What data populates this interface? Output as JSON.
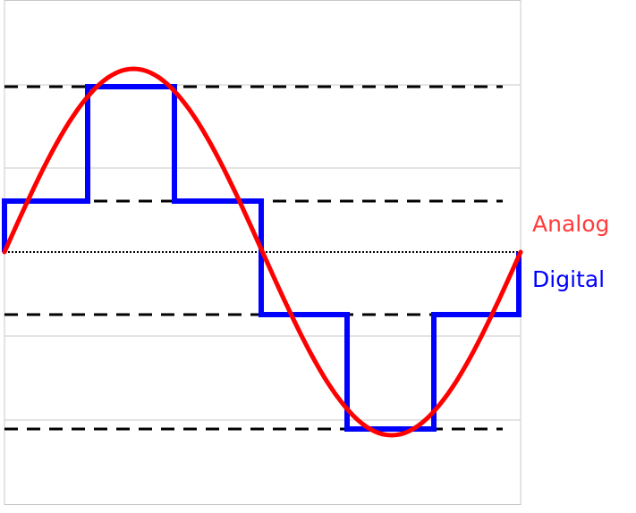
{
  "legend": {
    "analog": "Analog",
    "digital": "Digital"
  }
}
